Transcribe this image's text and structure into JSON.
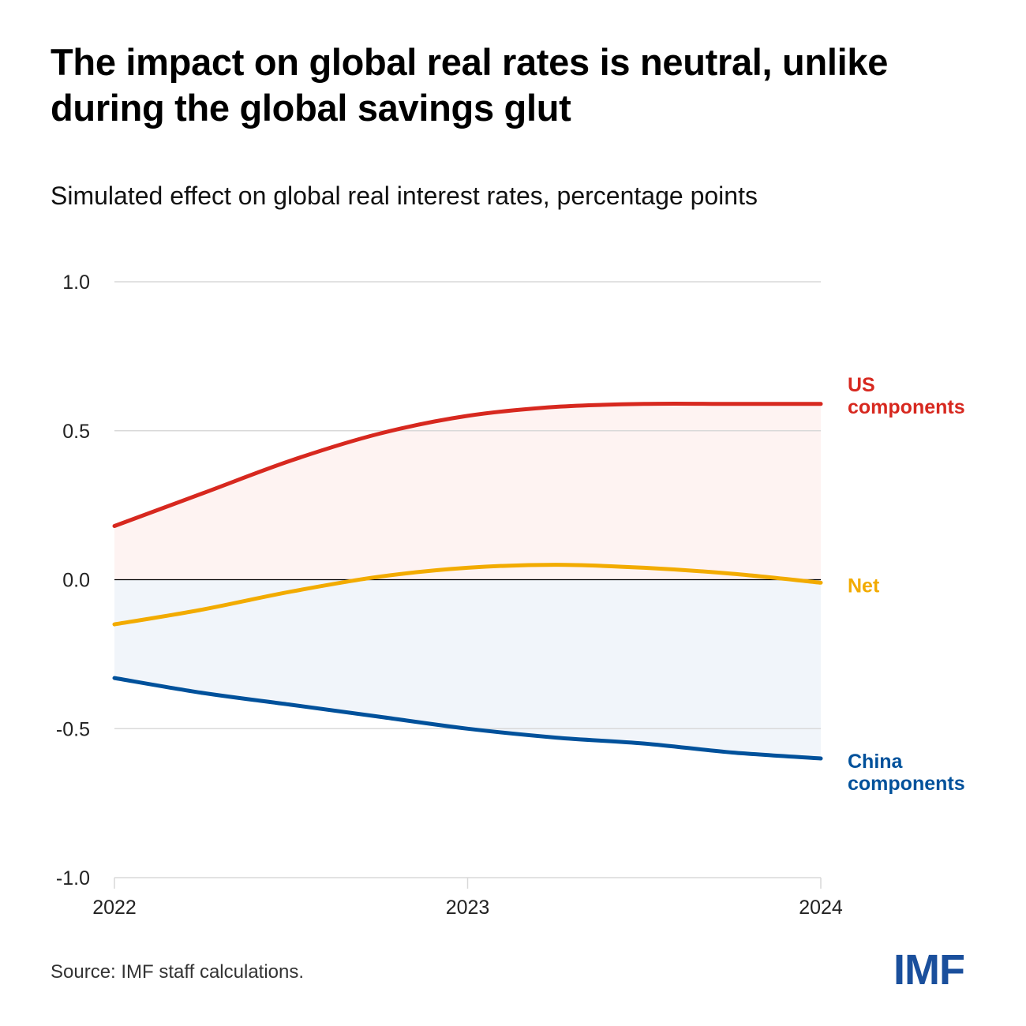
{
  "title": "The impact on global real rates is neutral, unlike during the global savings glut",
  "source": "Source: IMF staff calculations.",
  "logo_text": "IMF",
  "colors": {
    "us": "#d7281f",
    "net": "#f2ab00",
    "china": "#00519b",
    "us_fill": "#fef3f2",
    "china_fill": "#f1f5fa",
    "grid": "#d9d9d9",
    "zero_line": "#000000"
  },
  "chart_data": {
    "type": "line",
    "subtitle": "Simulated effect on global real interest rates, percentage points",
    "x_ticks": [
      "2022",
      "2023",
      "2024"
    ],
    "y_ticks": [
      "1.0",
      "0.5",
      "0.0",
      "-0.5",
      "-1.0"
    ],
    "xlim": [
      2022,
      2024
    ],
    "ylim": [
      -1.0,
      1.0
    ],
    "grid": true,
    "series": [
      {
        "key": "us",
        "name_lines": [
          "US",
          "components"
        ],
        "x": [
          2022,
          2022.25,
          2022.5,
          2022.75,
          2023,
          2023.25,
          2023.5,
          2023.75,
          2024
        ],
        "y": [
          0.18,
          0.29,
          0.4,
          0.49,
          0.55,
          0.58,
          0.59,
          0.59,
          0.59
        ]
      },
      {
        "key": "net",
        "name_lines": [
          "Net"
        ],
        "x": [
          2022,
          2022.25,
          2022.5,
          2022.75,
          2023,
          2023.25,
          2023.5,
          2023.75,
          2024
        ],
        "y": [
          -0.15,
          -0.1,
          -0.04,
          0.01,
          0.04,
          0.05,
          0.04,
          0.02,
          -0.01
        ]
      },
      {
        "key": "china",
        "name_lines": [
          "China",
          "components"
        ],
        "x": [
          2022,
          2022.25,
          2022.5,
          2022.75,
          2023,
          2023.25,
          2023.5,
          2023.75,
          2024
        ],
        "y": [
          -0.33,
          -0.38,
          -0.42,
          -0.46,
          -0.5,
          -0.53,
          -0.55,
          -0.58,
          -0.6
        ]
      }
    ]
  }
}
